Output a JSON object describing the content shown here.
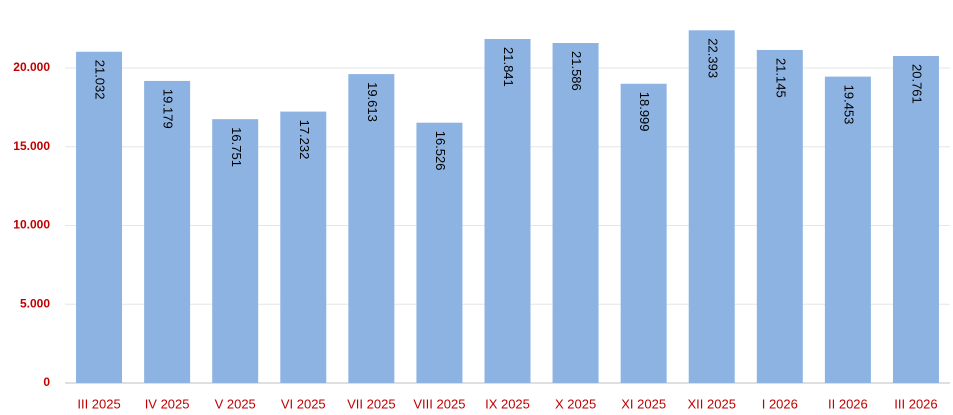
{
  "chart_data": {
    "type": "bar",
    "categories": [
      "III 2025",
      "IV 2025",
      "V 2025",
      "VI 2025",
      "VII 2025",
      "VIII 2025",
      "IX 2025",
      "X 2025",
      "XI 2025",
      "XII 2025",
      "I 2026",
      "II 2026",
      "III 2026"
    ],
    "values": [
      21032,
      19179,
      16751,
      17232,
      19613,
      16526,
      21841,
      21586,
      18999,
      22393,
      21145,
      19453,
      20761
    ],
    "value_labels": [
      "21.032",
      "19.179",
      "16.751",
      "17.232",
      "19.613",
      "16.526",
      "21.841",
      "21.586",
      "18.999",
      "22.393",
      "21.145",
      "19.453",
      "20.761"
    ],
    "color": "#8db3e2",
    "ylim": [
      0,
      24000
    ],
    "yticks": [
      0,
      {
        "value": 5000,
        "label": "5.000"
      },
      {
        "value": 10000,
        "label": "10.000"
      },
      {
        "value": 15000,
        "label": "15.000"
      },
      {
        "value": 20000,
        "label": "20.000"
      }
    ],
    "grid": true
  }
}
